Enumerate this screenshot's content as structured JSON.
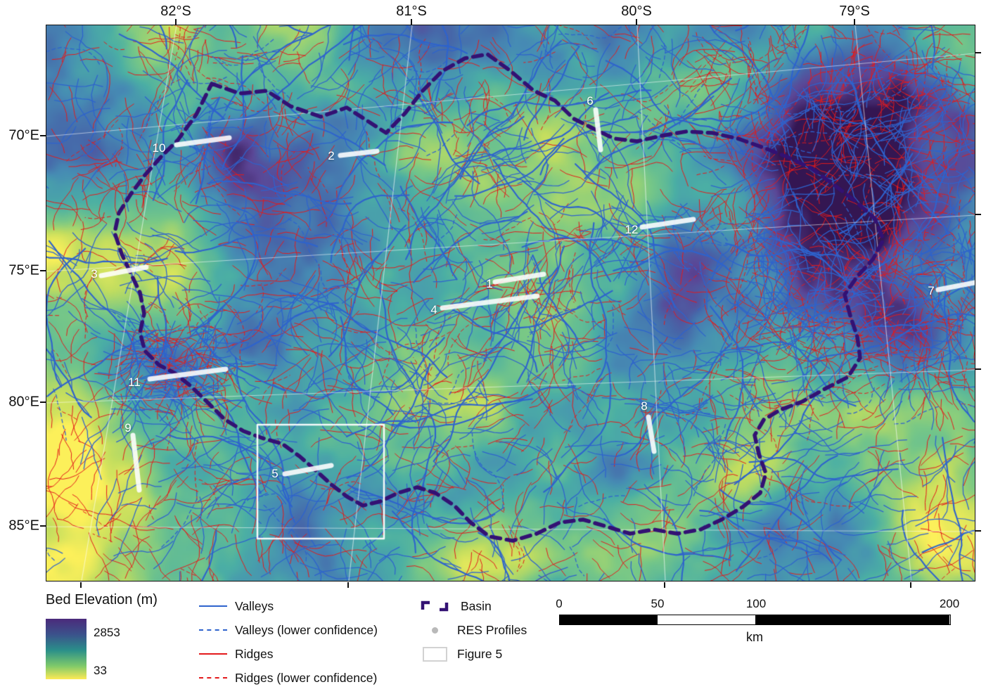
{
  "axes": {
    "top": [
      {
        "label": "82°S"
      },
      {
        "label": "81°S"
      },
      {
        "label": "80°S"
      },
      {
        "label": "79°S"
      }
    ],
    "left": [
      {
        "label": "70°E"
      },
      {
        "label": "75°E"
      },
      {
        "label": "80°E"
      },
      {
        "label": "85°E"
      }
    ]
  },
  "profiles": [
    {
      "label": "1"
    },
    {
      "label": "2"
    },
    {
      "label": "3"
    },
    {
      "label": "4"
    },
    {
      "label": "5"
    },
    {
      "label": "6"
    },
    {
      "label": "7"
    },
    {
      "label": "8"
    },
    {
      "label": "9"
    },
    {
      "label": "10"
    },
    {
      "label": "11"
    },
    {
      "label": "12"
    }
  ],
  "legend": {
    "elevation_title": "Bed Elevation (m)",
    "elevation_max": "2853",
    "elevation_min": "33",
    "items": [
      {
        "label": "Valleys"
      },
      {
        "label": "Valleys (lower confidence)"
      },
      {
        "label": "Ridges"
      },
      {
        "label": "Ridges (lower confidence)"
      },
      {
        "label": "Basin"
      },
      {
        "label": "RES Profiles"
      },
      {
        "label": "Figure 5"
      }
    ],
    "scalebar": {
      "ticks": [
        "0",
        "50",
        "100",
        "200"
      ],
      "unit": "km"
    }
  },
  "colors": {
    "valleys": "#2e63cd",
    "ridges": "#e31a1c",
    "basin": "#331173",
    "res_profiles": "#b9b9b9",
    "figure_box": "#d2d2d2"
  }
}
